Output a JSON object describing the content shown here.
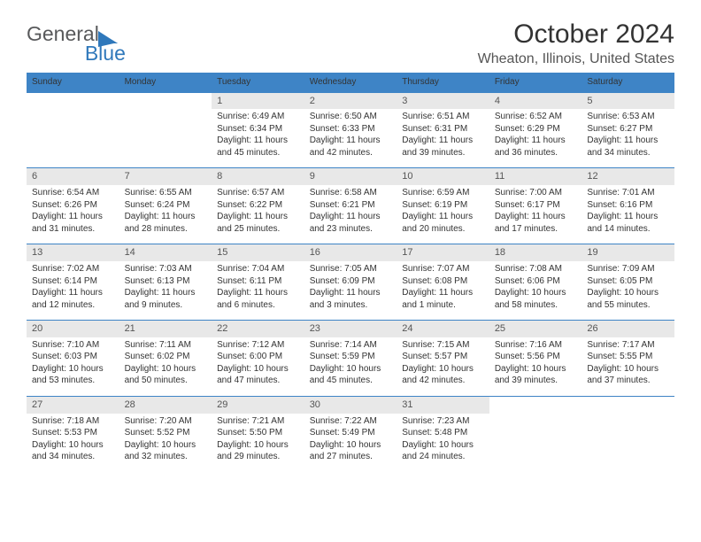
{
  "logo": {
    "text1": "General",
    "text2": "Blue"
  },
  "title": "October 2024",
  "location": "Wheaton, Illinois, United States",
  "colors": {
    "accent": "#3e84c6",
    "daynum_bg": "#e8e8e8",
    "text": "#333333",
    "subtext": "#555555",
    "logo_gray": "#58595b",
    "logo_blue": "#2f78bb",
    "background": "#ffffff"
  },
  "typography": {
    "title_fontsize": 30,
    "location_fontsize": 16,
    "header_fontsize": 12,
    "daynum_fontsize": 11,
    "body_fontsize": 10
  },
  "day_headers": [
    "Sunday",
    "Monday",
    "Tuesday",
    "Wednesday",
    "Thursday",
    "Friday",
    "Saturday"
  ],
  "labels": {
    "sunrise": "Sunrise:",
    "sunset": "Sunset:",
    "daylight": "Daylight:"
  },
  "weeks": [
    [
      null,
      null,
      {
        "n": "1",
        "sr": "6:49 AM",
        "ss": "6:34 PM",
        "dl": "11 hours and 45 minutes."
      },
      {
        "n": "2",
        "sr": "6:50 AM",
        "ss": "6:33 PM",
        "dl": "11 hours and 42 minutes."
      },
      {
        "n": "3",
        "sr": "6:51 AM",
        "ss": "6:31 PM",
        "dl": "11 hours and 39 minutes."
      },
      {
        "n": "4",
        "sr": "6:52 AM",
        "ss": "6:29 PM",
        "dl": "11 hours and 36 minutes."
      },
      {
        "n": "5",
        "sr": "6:53 AM",
        "ss": "6:27 PM",
        "dl": "11 hours and 34 minutes."
      }
    ],
    [
      {
        "n": "6",
        "sr": "6:54 AM",
        "ss": "6:26 PM",
        "dl": "11 hours and 31 minutes."
      },
      {
        "n": "7",
        "sr": "6:55 AM",
        "ss": "6:24 PM",
        "dl": "11 hours and 28 minutes."
      },
      {
        "n": "8",
        "sr": "6:57 AM",
        "ss": "6:22 PM",
        "dl": "11 hours and 25 minutes."
      },
      {
        "n": "9",
        "sr": "6:58 AM",
        "ss": "6:21 PM",
        "dl": "11 hours and 23 minutes."
      },
      {
        "n": "10",
        "sr": "6:59 AM",
        "ss": "6:19 PM",
        "dl": "11 hours and 20 minutes."
      },
      {
        "n": "11",
        "sr": "7:00 AM",
        "ss": "6:17 PM",
        "dl": "11 hours and 17 minutes."
      },
      {
        "n": "12",
        "sr": "7:01 AM",
        "ss": "6:16 PM",
        "dl": "11 hours and 14 minutes."
      }
    ],
    [
      {
        "n": "13",
        "sr": "7:02 AM",
        "ss": "6:14 PM",
        "dl": "11 hours and 12 minutes."
      },
      {
        "n": "14",
        "sr": "7:03 AM",
        "ss": "6:13 PM",
        "dl": "11 hours and 9 minutes."
      },
      {
        "n": "15",
        "sr": "7:04 AM",
        "ss": "6:11 PM",
        "dl": "11 hours and 6 minutes."
      },
      {
        "n": "16",
        "sr": "7:05 AM",
        "ss": "6:09 PM",
        "dl": "11 hours and 3 minutes."
      },
      {
        "n": "17",
        "sr": "7:07 AM",
        "ss": "6:08 PM",
        "dl": "11 hours and 1 minute."
      },
      {
        "n": "18",
        "sr": "7:08 AM",
        "ss": "6:06 PM",
        "dl": "10 hours and 58 minutes."
      },
      {
        "n": "19",
        "sr": "7:09 AM",
        "ss": "6:05 PM",
        "dl": "10 hours and 55 minutes."
      }
    ],
    [
      {
        "n": "20",
        "sr": "7:10 AM",
        "ss": "6:03 PM",
        "dl": "10 hours and 53 minutes."
      },
      {
        "n": "21",
        "sr": "7:11 AM",
        "ss": "6:02 PM",
        "dl": "10 hours and 50 minutes."
      },
      {
        "n": "22",
        "sr": "7:12 AM",
        "ss": "6:00 PM",
        "dl": "10 hours and 47 minutes."
      },
      {
        "n": "23",
        "sr": "7:14 AM",
        "ss": "5:59 PM",
        "dl": "10 hours and 45 minutes."
      },
      {
        "n": "24",
        "sr": "7:15 AM",
        "ss": "5:57 PM",
        "dl": "10 hours and 42 minutes."
      },
      {
        "n": "25",
        "sr": "7:16 AM",
        "ss": "5:56 PM",
        "dl": "10 hours and 39 minutes."
      },
      {
        "n": "26",
        "sr": "7:17 AM",
        "ss": "5:55 PM",
        "dl": "10 hours and 37 minutes."
      }
    ],
    [
      {
        "n": "27",
        "sr": "7:18 AM",
        "ss": "5:53 PM",
        "dl": "10 hours and 34 minutes."
      },
      {
        "n": "28",
        "sr": "7:20 AM",
        "ss": "5:52 PM",
        "dl": "10 hours and 32 minutes."
      },
      {
        "n": "29",
        "sr": "7:21 AM",
        "ss": "5:50 PM",
        "dl": "10 hours and 29 minutes."
      },
      {
        "n": "30",
        "sr": "7:22 AM",
        "ss": "5:49 PM",
        "dl": "10 hours and 27 minutes."
      },
      {
        "n": "31",
        "sr": "7:23 AM",
        "ss": "5:48 PM",
        "dl": "10 hours and 24 minutes."
      },
      null,
      null
    ]
  ]
}
